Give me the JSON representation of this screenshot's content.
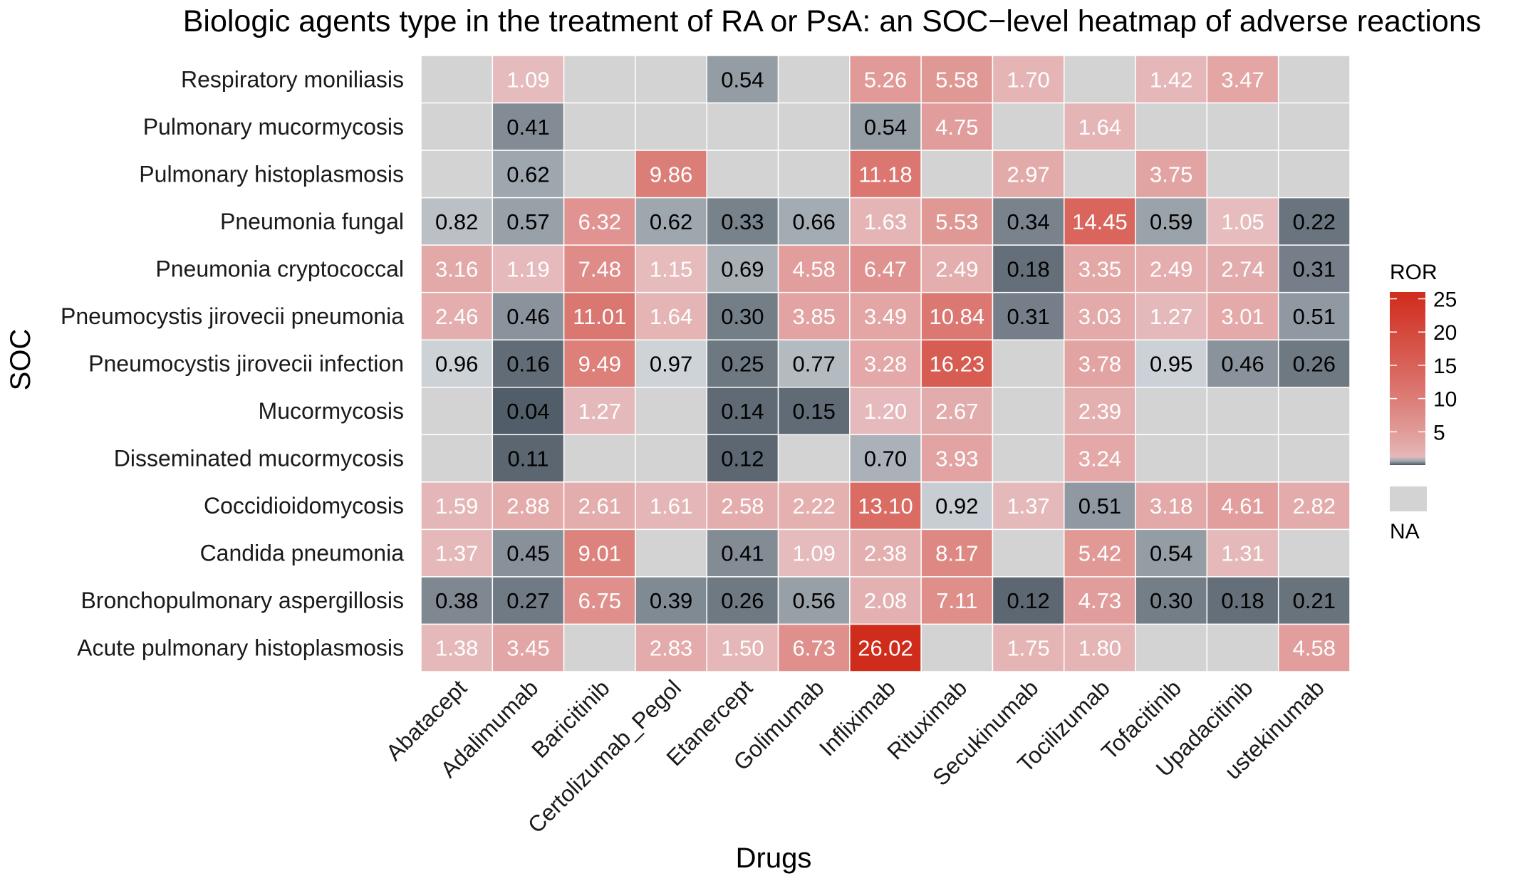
{
  "chart_data": {
    "type": "heatmap",
    "title": "Biologic agents type in the treatment of RA or PsA: an SOC−level heatmap of adverse reactions",
    "xlabel": "Drugs",
    "ylabel": "SOC",
    "columns": [
      "Abatacept",
      "Adalimumab",
      "Baricitinib",
      "Certolizumab_Pegol",
      "Etanercept",
      "Golimumab",
      "Infliximab",
      "Rituximab",
      "Secukinumab",
      "Tocilizumab",
      "Tofacitinib",
      "Upadacitinib",
      "ustekinumab"
    ],
    "rows": [
      "Respiratory moniliasis",
      "Pulmonary mucormycosis",
      "Pulmonary histoplasmosis",
      "Pneumonia fungal",
      "Pneumonia cryptococcal",
      "Pneumocystis jirovecii pneumonia",
      "Pneumocystis jirovecii infection",
      "Mucormycosis",
      "Disseminated mucormycosis",
      "Coccidioidomycosis",
      "Candida pneumonia",
      "Bronchopulmonary aspergillosis",
      "Acute pulmonary histoplasmosis"
    ],
    "values": [
      [
        null,
        1.09,
        null,
        null,
        0.54,
        null,
        5.26,
        5.58,
        1.7,
        null,
        1.42,
        3.47,
        null
      ],
      [
        null,
        0.41,
        null,
        null,
        null,
        null,
        0.54,
        4.75,
        null,
        1.64,
        null,
        null,
        null
      ],
      [
        null,
        0.62,
        null,
        9.86,
        null,
        null,
        11.18,
        null,
        2.97,
        null,
        3.75,
        null,
        null
      ],
      [
        0.82,
        0.57,
        6.32,
        0.62,
        0.33,
        0.66,
        1.63,
        5.53,
        0.34,
        14.45,
        0.59,
        1.05,
        0.22
      ],
      [
        3.16,
        1.19,
        7.48,
        1.15,
        0.69,
        4.58,
        6.47,
        2.49,
        0.18,
        3.35,
        2.49,
        2.74,
        0.31
      ],
      [
        2.46,
        0.46,
        11.01,
        1.64,
        0.3,
        3.85,
        3.49,
        10.84,
        0.31,
        3.03,
        1.27,
        3.01,
        0.51
      ],
      [
        0.96,
        0.16,
        9.49,
        0.97,
        0.25,
        0.77,
        3.28,
        16.23,
        null,
        3.78,
        0.95,
        0.46,
        0.26
      ],
      [
        null,
        0.04,
        1.27,
        null,
        0.14,
        0.15,
        1.2,
        2.67,
        null,
        2.39,
        null,
        null,
        null
      ],
      [
        null,
        0.11,
        null,
        null,
        0.12,
        null,
        0.7,
        3.93,
        null,
        3.24,
        null,
        null,
        null
      ],
      [
        1.59,
        2.88,
        2.61,
        1.61,
        2.58,
        2.22,
        13.1,
        0.92,
        1.37,
        0.51,
        3.18,
        4.61,
        2.82
      ],
      [
        1.37,
        0.45,
        9.01,
        null,
        0.41,
        1.09,
        2.38,
        8.17,
        null,
        5.42,
        0.54,
        1.31,
        null
      ],
      [
        0.38,
        0.27,
        6.75,
        0.39,
        0.26,
        0.56,
        2.08,
        7.11,
        0.12,
        4.73,
        0.3,
        0.18,
        0.21
      ],
      [
        1.38,
        3.45,
        null,
        2.83,
        1.5,
        6.73,
        26.02,
        null,
        1.75,
        1.8,
        null,
        null,
        4.58
      ]
    ],
    "legend": {
      "title": "ROR",
      "ticks": [
        5,
        10,
        15,
        20,
        25
      ],
      "range": [
        0,
        26.02
      ],
      "na_label": "NA",
      "placement": "right"
    },
    "colors": {
      "high": "#d02c1c",
      "above_one": "#e6bdbf",
      "below_one_light": "#d2d7dc",
      "below_one_dark": "#4c5863",
      "na": "#d3d3d3"
    }
  }
}
